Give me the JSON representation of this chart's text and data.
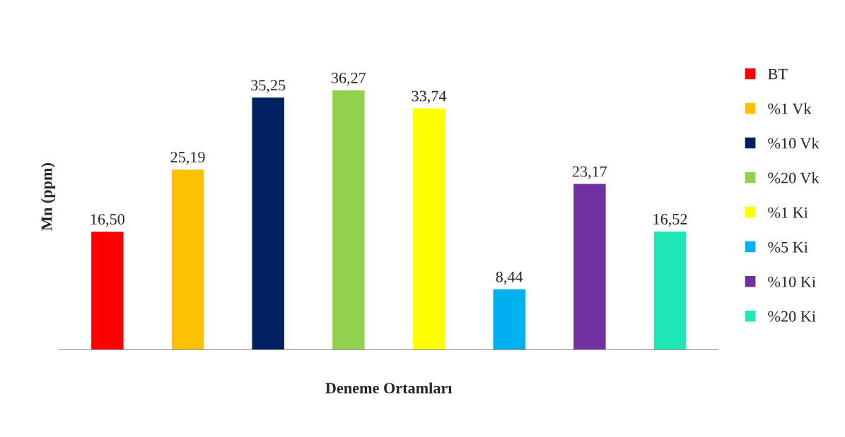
{
  "chart_data": {
    "type": "bar",
    "xlabel": "Deneme Ortamları",
    "ylabel": "Mn (ppm)",
    "categories": [
      null,
      null,
      null,
      null,
      null,
      null,
      null,
      null
    ],
    "stacked": true,
    "series": [
      {
        "name": "BT",
        "color": "#ff0000",
        "values": [
          16.5,
          null,
          null,
          null,
          null,
          null,
          null,
          null
        ],
        "value_labels": [
          "16,50",
          null,
          null,
          null,
          null,
          null,
          null,
          null
        ]
      },
      {
        "name": "%1 Vk",
        "color": "#ffc000",
        "values": [
          null,
          25.19,
          null,
          null,
          null,
          null,
          null,
          null
        ],
        "value_labels": [
          null,
          "25,19",
          null,
          null,
          null,
          null,
          null,
          null
        ]
      },
      {
        "name": "%10 Vk",
        "color": "#002060",
        "values": [
          null,
          null,
          35.25,
          null,
          null,
          null,
          null,
          null
        ],
        "value_labels": [
          null,
          null,
          "35,25",
          null,
          null,
          null,
          null,
          null
        ]
      },
      {
        "name": "%20 Vk",
        "color": "#92d050",
        "values": [
          null,
          null,
          null,
          36.27,
          null,
          null,
          null,
          null
        ],
        "value_labels": [
          null,
          null,
          null,
          "36,27",
          null,
          null,
          null,
          null
        ]
      },
      {
        "name": "%1 Ki",
        "color": "#ffff00",
        "values": [
          null,
          null,
          null,
          null,
          33.74,
          null,
          null,
          null
        ],
        "value_labels": [
          null,
          null,
          null,
          null,
          "33,74",
          null,
          null,
          null
        ]
      },
      {
        "name": "%5 Ki",
        "color": "#00b0f0",
        "values": [
          null,
          null,
          null,
          null,
          null,
          8.44,
          null,
          null
        ],
        "value_labels": [
          null,
          null,
          null,
          null,
          null,
          "8,44",
          null,
          null
        ]
      },
      {
        "name": "%10 Ki",
        "color": "#7030a0",
        "values": [
          null,
          null,
          null,
          null,
          null,
          null,
          23.17,
          null
        ],
        "value_labels": [
          null,
          null,
          null,
          null,
          null,
          null,
          "23,17",
          null
        ]
      },
      {
        "name": "%20 Ki",
        "color": "#1de9b6",
        "values": [
          null,
          null,
          null,
          null,
          null,
          null,
          null,
          16.52
        ],
        "value_labels": [
          null,
          null,
          null,
          null,
          null,
          null,
          null,
          "16,52"
        ]
      }
    ],
    "legend": "right",
    "grid": false
  }
}
